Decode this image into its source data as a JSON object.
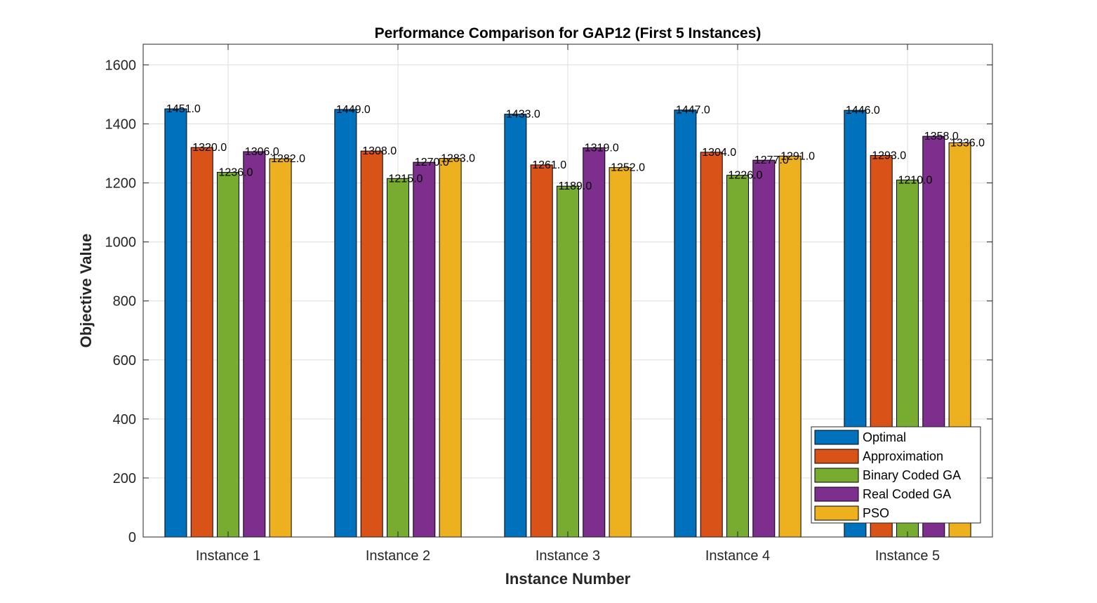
{
  "chart_data": {
    "type": "bar",
    "title": "Performance Comparison for GAP12 (First 5 Instances)",
    "xlabel": "Instance Number",
    "ylabel": "Objective Value",
    "categories": [
      "Instance 1",
      "Instance 2",
      "Instance 3",
      "Instance 4",
      "Instance 5"
    ],
    "ylim": [
      0,
      1670
    ],
    "yticks": [
      0,
      200,
      400,
      600,
      800,
      1000,
      1200,
      1400,
      1600
    ],
    "grid": true,
    "legend_position": "bottom-right",
    "series": [
      {
        "name": "Optimal",
        "color": "#0072BD",
        "values": [
          1451,
          1449,
          1433,
          1447,
          1446
        ],
        "labels": [
          "1451.0",
          "1449.0",
          "1433.0",
          "1447.0",
          "1446.0"
        ]
      },
      {
        "name": "Approximation",
        "color": "#D95319",
        "values": [
          1320,
          1308,
          1261,
          1304,
          1293
        ],
        "labels": [
          "1320.0",
          "1308.0",
          "1261.0",
          "1304.0",
          "1293.0"
        ]
      },
      {
        "name": "Binary Coded GA",
        "color": "#77AC30",
        "values": [
          1236,
          1215,
          1189,
          1226,
          1210
        ],
        "labels": [
          "1236.0",
          "1215.0",
          "1189.0",
          "1226.0",
          "1210.0"
        ]
      },
      {
        "name": "Real Coded GA",
        "color": "#7E2F8E",
        "values": [
          1306,
          1270,
          1319,
          1277,
          1358
        ],
        "labels": [
          "1306.0",
          "1270.0",
          "1319.0",
          "1277.0",
          "1358.0"
        ]
      },
      {
        "name": "PSO",
        "color": "#EDB120",
        "values": [
          1282,
          1283,
          1252,
          1291,
          1336
        ],
        "labels": [
          "1282.0",
          "1283.0",
          "1252.0",
          "1291.0",
          "1336.0"
        ]
      }
    ]
  }
}
